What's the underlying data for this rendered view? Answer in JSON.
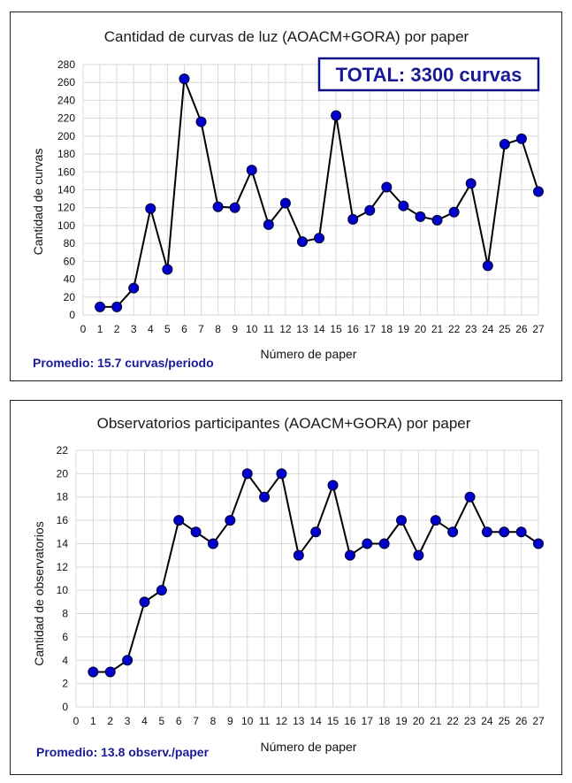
{
  "chart_data": [
    {
      "type": "line",
      "title": "Cantidad de curvas de luz (AOACM+GORA) por paper",
      "xlabel": "Número de paper",
      "ylabel": "Cantidad de curvas",
      "xlim": [
        0,
        27
      ],
      "ylim": [
        0,
        280
      ],
      "ystep": 20,
      "grid": true,
      "x": [
        1,
        2,
        3,
        4,
        5,
        6,
        7,
        8,
        9,
        10,
        11,
        12,
        13,
        14,
        15,
        16,
        17,
        18,
        19,
        20,
        21,
        22,
        23,
        24,
        25,
        26,
        27
      ],
      "values": [
        9,
        9,
        30,
        119,
        51,
        264,
        216,
        121,
        120,
        162,
        101,
        125,
        82,
        86,
        223,
        107,
        117,
        143,
        122,
        110,
        106,
        115,
        147,
        55,
        191,
        197,
        138
      ],
      "annotation": "TOTAL: 3300 curvas",
      "note": "Promedio: 15.7 curvas/periodo",
      "line_color": "#000000",
      "marker_color": "#0000cc"
    },
    {
      "type": "line",
      "title": "Observatorios participantes (AOACM+GORA) por paper",
      "xlabel": "Número de paper",
      "ylabel": "Cantidad de observatorios",
      "xlim": [
        0,
        27
      ],
      "ylim": [
        0,
        22
      ],
      "ystep": 2,
      "grid": true,
      "x": [
        1,
        2,
        3,
        4,
        5,
        6,
        7,
        8,
        9,
        10,
        11,
        12,
        13,
        14,
        15,
        16,
        17,
        18,
        19,
        20,
        21,
        22,
        23,
        24,
        25,
        26,
        27
      ],
      "values": [
        3,
        3,
        4,
        9,
        10,
        16,
        15,
        14,
        16,
        20,
        18,
        20,
        13,
        15,
        19,
        13,
        14,
        14,
        16,
        13,
        16,
        15,
        18,
        15,
        15,
        15,
        14
      ],
      "note": "Promedio: 13.8 observ./paper",
      "line_color": "#000000",
      "marker_color": "#0000cc"
    }
  ]
}
